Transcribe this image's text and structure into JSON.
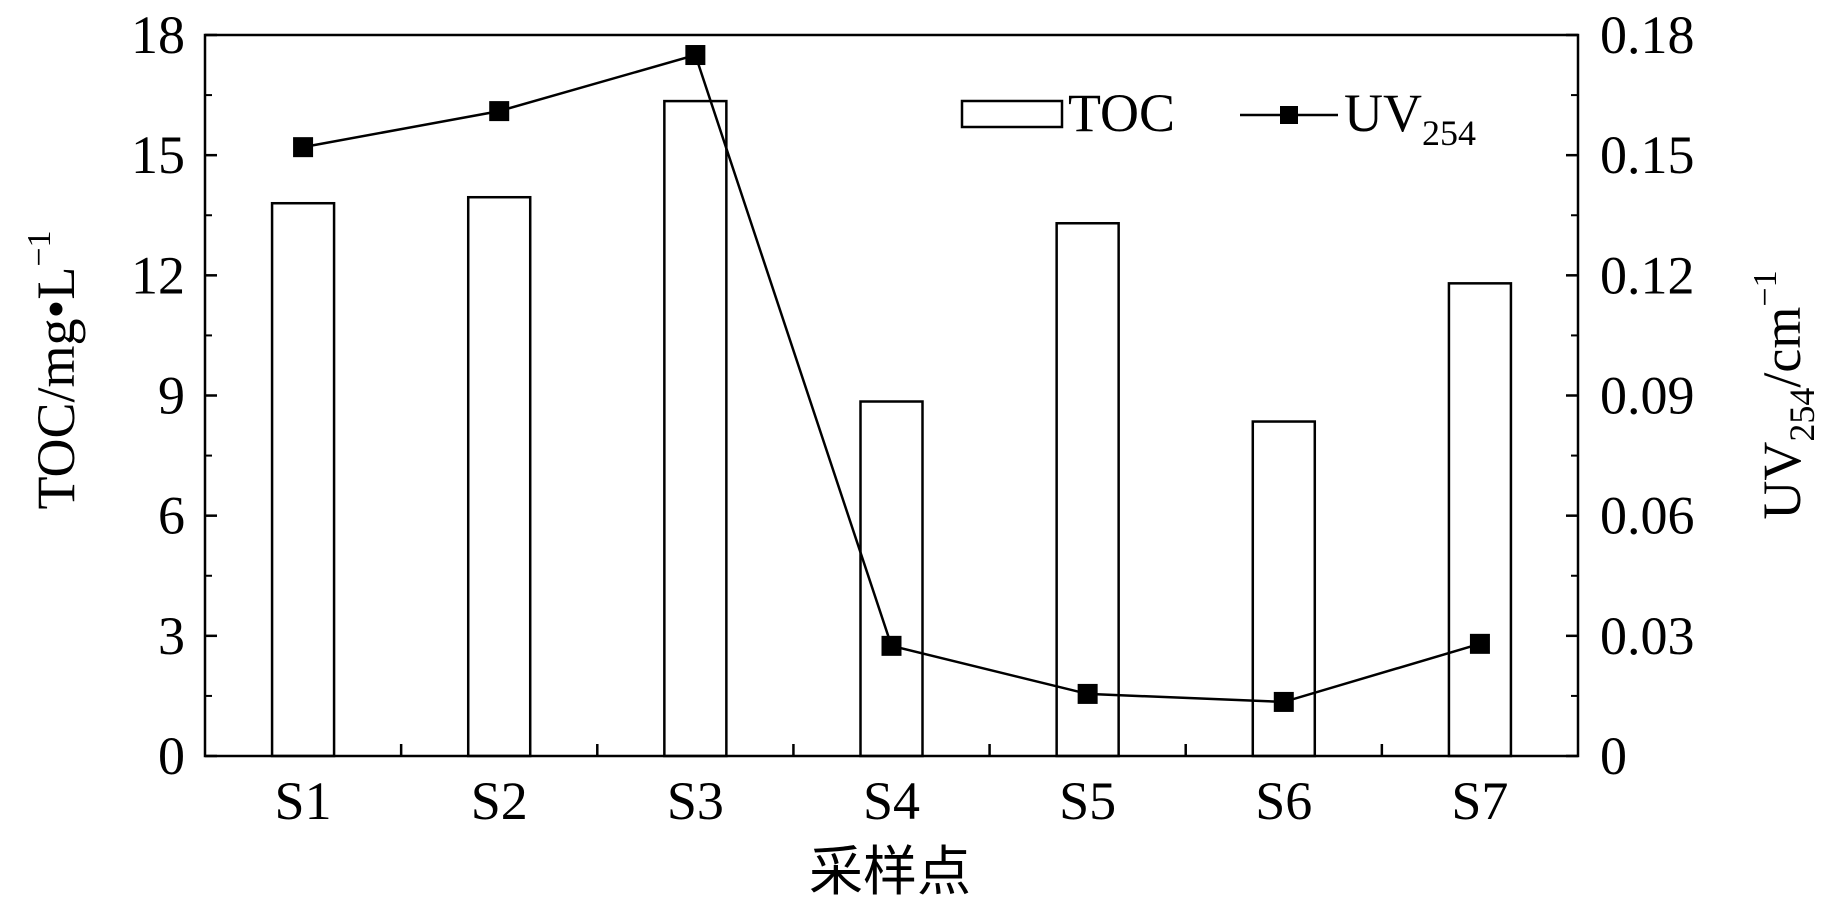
{
  "chart_data": {
    "type": "bar+line",
    "categories": [
      "S1",
      "S2",
      "S3",
      "S4",
      "S5",
      "S6",
      "S7"
    ],
    "series": [
      {
        "name": "TOC",
        "kind": "bar",
        "axis": "left",
        "values": [
          13.8,
          13.95,
          16.35,
          8.85,
          13.3,
          8.35,
          11.8
        ]
      },
      {
        "name": "UV254",
        "kind": "line",
        "axis": "right",
        "marker": "square",
        "values": [
          0.152,
          0.161,
          0.175,
          0.0275,
          0.0155,
          0.0135,
          0.028
        ]
      }
    ],
    "xlabel": "采样点",
    "ylabel_left": {
      "base": "TOC/mg•L",
      "sup": "−1"
    },
    "ylabel_right": {
      "base": "UV",
      "sub": "254",
      "tail": "/cm",
      "sup": "−1"
    },
    "legend": {
      "placement": "top-right",
      "bar_label": "TOC",
      "line_label_base": "UV",
      "line_label_sub": "254"
    },
    "ylim_left": [
      0,
      18
    ],
    "yticks_left": [
      0,
      3,
      6,
      9,
      12,
      15,
      18
    ],
    "ylim_right": [
      0,
      0.18
    ],
    "yticks_right": [
      "0",
      "0.03",
      "0.06",
      "0.09",
      "0.12",
      "0.15",
      "0.18"
    ],
    "grid": false,
    "colors": {
      "bar_fill": "#ffffff",
      "stroke": "#000000",
      "marker": "#000000"
    }
  }
}
